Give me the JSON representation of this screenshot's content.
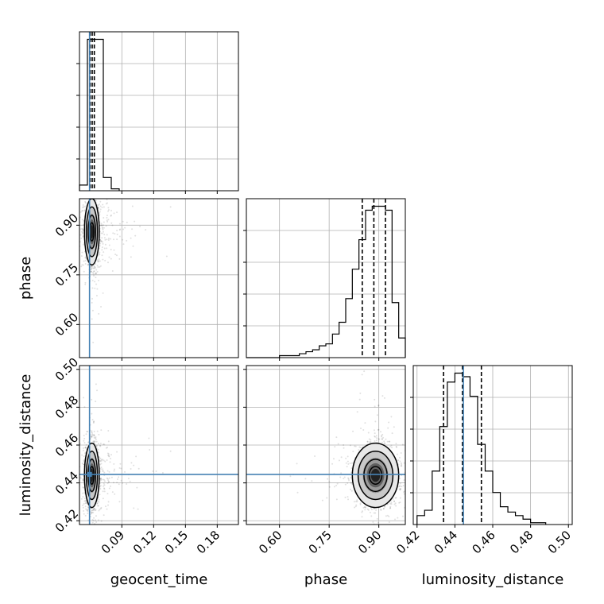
{
  "chart_data": {
    "type": "corner",
    "parameters": [
      "geocent_time",
      "phase",
      "luminosity_distance"
    ],
    "axis_labels": {
      "geocent_time": "geocent_time",
      "phase": "phase",
      "luminosity_distance": "luminosity_distance"
    },
    "ranges": {
      "geocent_time": [
        0.05,
        0.2
      ],
      "phase": [
        0.5,
        0.98
      ],
      "luminosity_distance": [
        0.418,
        0.502
      ]
    },
    "ticks": {
      "geocent_time": [
        "0.09",
        "0.12",
        "0.15",
        "0.18"
      ],
      "phase": [
        "0.60",
        "0.75",
        "0.90"
      ],
      "luminosity_distance": [
        "0.42",
        "0.44",
        "0.46",
        "0.48",
        "0.50"
      ]
    },
    "truths": {
      "geocent_time": 0.0595,
      "phase": null,
      "luminosity_distance": 0.4445
    },
    "histograms": {
      "geocent_time": {
        "edges": [
          0.05,
          0.0575,
          0.065,
          0.0725,
          0.08,
          0.0875
        ],
        "counts": [
          3,
          80,
          80,
          7,
          1
        ]
      },
      "phase": {
        "edges": [
          0.5,
          0.52,
          0.54,
          0.56,
          0.58,
          0.6,
          0.62,
          0.64,
          0.66,
          0.68,
          0.7,
          0.72,
          0.74,
          0.76,
          0.78,
          0.8,
          0.82,
          0.84,
          0.86,
          0.88,
          0.9,
          0.92,
          0.94,
          0.96,
          0.98
        ],
        "counts": [
          0,
          0,
          0,
          0,
          0,
          1,
          1,
          1,
          2,
          3,
          4,
          6,
          7,
          12,
          18,
          30,
          45,
          60,
          75,
          77,
          77,
          75,
          28,
          10
        ]
      },
      "luminosity_distance": {
        "edges": [
          0.42,
          0.424,
          0.428,
          0.432,
          0.436,
          0.44,
          0.444,
          0.448,
          0.452,
          0.456,
          0.46,
          0.464,
          0.468,
          0.472,
          0.476,
          0.48,
          0.484,
          0.488
        ],
        "counts": [
          5,
          8,
          30,
          55,
          80,
          85,
          83,
          72,
          45,
          30,
          18,
          10,
          7,
          5,
          3,
          1,
          1
        ]
      }
    },
    "quantiles": {
      "geocent_time": [
        0.06,
        0.062,
        0.064
      ],
      "phase": [
        0.85,
        0.885,
        0.92
      ],
      "luminosity_distance": [
        0.434,
        0.444,
        0.454
      ]
    },
    "density_centers": {
      "geocent_time_phase": {
        "x": 0.0617,
        "y": 0.88,
        "sx": 0.0035,
        "sy": 0.05
      },
      "geocent_time_luminosity_distance": {
        "x": 0.0617,
        "y": 0.444,
        "sx": 0.0035,
        "sy": 0.0085
      },
      "phase_luminosity_distance": {
        "x": 0.89,
        "y": 0.444,
        "sx": 0.035,
        "sy": 0.0085
      }
    }
  }
}
